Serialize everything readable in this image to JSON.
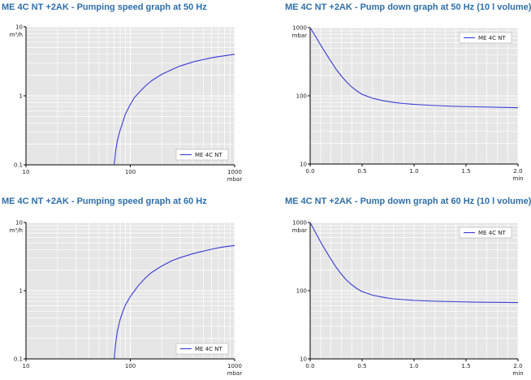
{
  "colors": {
    "title": "#2f6fa8",
    "curve": "#3a3ad6",
    "plot_bg": "#e6e6e6",
    "grid": "#ffffff",
    "axis": "#000000"
  },
  "chart_data": [
    {
      "type": "line",
      "title": "ME 4C NT +2AK - Pumping speed graph at 50 Hz",
      "xlabel": "mbar",
      "ylabel": "m³/h",
      "xscale": "log",
      "yscale": "log",
      "xlim": [
        10,
        1000
      ],
      "ylim": [
        0.1,
        10
      ],
      "xticks": [
        "10",
        "100",
        "1000"
      ],
      "yticks": [
        "0.1",
        "1",
        "10"
      ],
      "grid": true,
      "legend_position": "bottom-right",
      "series": [
        {
          "name": "ME 4C NT",
          "x": [
            70,
            72,
            75,
            80,
            85,
            90,
            100,
            110,
            120,
            140,
            160,
            200,
            250,
            300,
            400,
            500,
            600,
            700,
            800,
            1000
          ],
          "y": [
            0.1,
            0.15,
            0.22,
            0.32,
            0.42,
            0.55,
            0.75,
            0.95,
            1.1,
            1.4,
            1.65,
            2.05,
            2.4,
            2.7,
            3.1,
            3.35,
            3.55,
            3.7,
            3.8,
            4.0
          ]
        }
      ]
    },
    {
      "type": "line",
      "title": "ME 4C NT +2AK - Pump down graph at 50 Hz (10 l volume)",
      "xlabel": "min",
      "ylabel": "mbar",
      "xscale": "linear",
      "yscale": "log",
      "xlim": [
        0,
        2
      ],
      "ylim": [
        10,
        1000
      ],
      "xticks": [
        "0.0",
        "0.5",
        "1.0",
        "1.5",
        "2.0"
      ],
      "yticks": [
        "10",
        "100",
        "1000"
      ],
      "grid": true,
      "legend_position": "top-right",
      "series": [
        {
          "name": "ME 4C NT",
          "x": [
            0,
            0.05,
            0.1,
            0.15,
            0.2,
            0.25,
            0.3,
            0.35,
            0.4,
            0.45,
            0.5,
            0.6,
            0.7,
            0.8,
            0.9,
            1.0,
            1.2,
            1.4,
            1.6,
            1.8,
            2.0
          ],
          "y": [
            1000,
            750,
            560,
            420,
            320,
            245,
            195,
            160,
            135,
            118,
            105,
            92,
            85,
            80,
            77,
            75,
            72,
            70,
            69,
            68,
            67
          ]
        }
      ]
    },
    {
      "type": "line",
      "title": "ME 4C NT +2AK - Pumping speed graph at 60 Hz",
      "xlabel": "mbar",
      "ylabel": "m³/h",
      "xscale": "log",
      "yscale": "log",
      "xlim": [
        10,
        1000
      ],
      "ylim": [
        0.1,
        10
      ],
      "xticks": [
        "10",
        "100",
        "1000"
      ],
      "yticks": [
        "0.1",
        "1",
        "10"
      ],
      "grid": true,
      "legend_position": "bottom-right",
      "series": [
        {
          "name": "ME 4C NT",
          "x": [
            70,
            72,
            75,
            80,
            85,
            90,
            100,
            110,
            120,
            140,
            160,
            200,
            250,
            300,
            400,
            500,
            600,
            700,
            800,
            1000
          ],
          "y": [
            0.1,
            0.16,
            0.25,
            0.38,
            0.5,
            0.62,
            0.82,
            1.0,
            1.2,
            1.55,
            1.85,
            2.3,
            2.75,
            3.05,
            3.5,
            3.8,
            4.05,
            4.25,
            4.4,
            4.6
          ]
        }
      ]
    },
    {
      "type": "line",
      "title": "ME 4C NT +2AK - Pump down graph at 60 Hz (10 l volume)",
      "xlabel": "min",
      "ylabel": "mbar",
      "xscale": "linear",
      "yscale": "log",
      "xlim": [
        0,
        2
      ],
      "ylim": [
        10,
        1000
      ],
      "xticks": [
        "0.0",
        "0.5",
        "1.0",
        "1.5",
        "2.0"
      ],
      "yticks": [
        "10",
        "100",
        "1000"
      ],
      "grid": true,
      "legend_position": "top-right",
      "series": [
        {
          "name": "ME 4C NT",
          "x": [
            0,
            0.05,
            0.1,
            0.15,
            0.2,
            0.25,
            0.3,
            0.35,
            0.4,
            0.45,
            0.5,
            0.6,
            0.7,
            0.8,
            0.9,
            1.0,
            1.2,
            1.4,
            1.6,
            1.8,
            2.0
          ],
          "y": [
            1000,
            720,
            520,
            385,
            290,
            220,
            175,
            143,
            122,
            107,
            97,
            86,
            80,
            76,
            74,
            72,
            70,
            69,
            68,
            67.5,
            67
          ]
        }
      ]
    }
  ]
}
